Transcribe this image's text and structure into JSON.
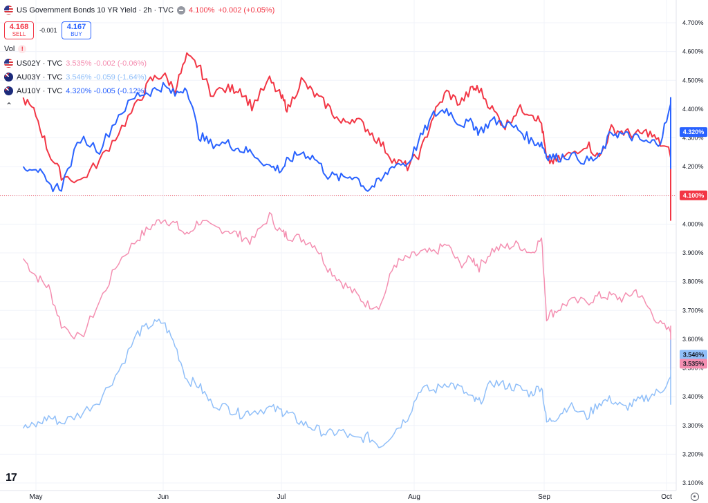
{
  "header": {
    "title": "US Government Bonds 10 YR Yield · 2h · TVC",
    "last": "4.100%",
    "change": "+0.002 (+0.05%)"
  },
  "trade": {
    "sell_price": "4.168",
    "sell_label": "SELL",
    "buy_price": "4.167",
    "buy_label": "BUY",
    "spread": "-0.001"
  },
  "vol_label": "Vol",
  "legend": [
    {
      "symbol": "US02Y · TVC",
      "values": "3.535% -0.002 (-0.06%)",
      "color": "#f48fb1",
      "flag": "us"
    },
    {
      "symbol": "AU03Y · TVC",
      "values": "3.546% -0.059 (-1.64%)",
      "color": "#90bff9",
      "flag": "au"
    },
    {
      "symbol": "AU10Y · TVC",
      "values": "4.320% -0.005 (-0.12%)",
      "color": "#2962ff",
      "flag": "au"
    }
  ],
  "icons": [
    "us-flag-icon",
    "au-flag-icon",
    "minus-icon",
    "warning-icon",
    "chevron-up-icon",
    "tradingview-logo",
    "settings-icon"
  ],
  "chart_data": {
    "type": "line",
    "y_unit": "%",
    "ylim": [
      3.1,
      4.7
    ],
    "y_ticks": [
      "4.700%",
      "4.600%",
      "4.500%",
      "4.400%",
      "4.300%",
      "4.200%",
      "4.100%",
      "4.000%",
      "3.900%",
      "3.800%",
      "3.700%",
      "3.600%",
      "3.500%",
      "3.400%",
      "3.300%",
      "3.200%",
      "3.100%"
    ],
    "x_labels": [
      "May",
      "Jun",
      "Jul",
      "Aug",
      "Sep",
      "Oct"
    ],
    "grid": true,
    "legend_position": "top-left",
    "series": [
      {
        "name": "US10Y",
        "color": "#f23645",
        "last": "4.100%",
        "points": [
          [
            -0.1,
            4.44
          ],
          [
            0.0,
            4.38
          ],
          [
            0.1,
            4.25
          ],
          [
            0.2,
            4.17
          ],
          [
            0.35,
            4.15
          ],
          [
            0.5,
            4.22
          ],
          [
            0.65,
            4.32
          ],
          [
            0.8,
            4.42
          ],
          [
            0.9,
            4.5
          ],
          [
            1.0,
            4.52
          ],
          [
            1.1,
            4.47
          ],
          [
            1.2,
            4.58
          ],
          [
            1.3,
            4.55
          ],
          [
            1.4,
            4.46
          ],
          [
            1.55,
            4.47
          ],
          [
            1.65,
            4.47
          ],
          [
            1.75,
            4.41
          ],
          [
            1.9,
            4.5
          ],
          [
            2.0,
            4.44
          ],
          [
            2.05,
            4.4
          ],
          [
            2.15,
            4.5
          ],
          [
            2.25,
            4.45
          ],
          [
            2.35,
            4.41
          ],
          [
            2.45,
            4.35
          ],
          [
            2.55,
            4.37
          ],
          [
            2.65,
            4.33
          ],
          [
            2.75,
            4.28
          ],
          [
            2.85,
            4.22
          ],
          [
            2.95,
            4.2
          ],
          [
            3.05,
            4.25
          ],
          [
            3.15,
            4.38
          ],
          [
            3.25,
            4.46
          ],
          [
            3.35,
            4.42
          ],
          [
            3.45,
            4.47
          ],
          [
            3.5,
            4.47
          ],
          [
            3.6,
            4.4
          ],
          [
            3.7,
            4.34
          ],
          [
            3.8,
            4.4
          ],
          [
            3.9,
            4.39
          ],
          [
            3.98,
            4.35
          ],
          [
            4.02,
            4.22
          ],
          [
            4.1,
            4.22
          ],
          [
            4.2,
            4.24
          ],
          [
            4.35,
            4.28
          ],
          [
            4.45,
            4.23
          ],
          [
            4.55,
            4.33
          ],
          [
            4.65,
            4.32
          ],
          [
            4.75,
            4.31
          ],
          [
            4.85,
            4.32
          ],
          [
            4.95,
            4.28
          ],
          [
            5.05,
            4.24
          ],
          [
            5.12,
            4.25
          ],
          [
            5.2,
            4.15
          ],
          [
            5.25,
            4.09
          ],
          [
            5.35,
            4.05
          ],
          [
            5.45,
            4.05
          ],
          [
            5.5,
            4.03
          ],
          [
            5.6,
            4.03
          ],
          [
            5.7,
            4.09
          ],
          [
            5.8,
            4.14
          ],
          [
            5.9,
            4.15
          ],
          [
            5.95,
            4.18
          ],
          [
            6.03,
            4.15
          ],
          [
            6.08,
            4.1
          ]
        ]
      },
      {
        "name": "AU10Y",
        "color": "#2962ff",
        "last": "4.320%",
        "points": [
          [
            -0.1,
            4.2
          ],
          [
            0.0,
            4.2
          ],
          [
            0.1,
            4.13
          ],
          [
            0.2,
            4.13
          ],
          [
            0.35,
            4.3
          ],
          [
            0.5,
            4.26
          ],
          [
            0.65,
            4.38
          ],
          [
            0.8,
            4.45
          ],
          [
            0.9,
            4.46
          ],
          [
            1.0,
            4.48
          ],
          [
            1.1,
            4.45
          ],
          [
            1.2,
            4.48
          ],
          [
            1.3,
            4.31
          ],
          [
            1.4,
            4.28
          ],
          [
            1.55,
            4.28
          ],
          [
            1.65,
            4.26
          ],
          [
            1.75,
            4.25
          ],
          [
            1.9,
            4.2
          ],
          [
            2.0,
            4.19
          ],
          [
            2.05,
            4.22
          ],
          [
            2.15,
            4.25
          ],
          [
            2.25,
            4.23
          ],
          [
            2.35,
            4.17
          ],
          [
            2.45,
            4.16
          ],
          [
            2.55,
            4.17
          ],
          [
            2.65,
            4.12
          ],
          [
            2.75,
            4.15
          ],
          [
            2.85,
            4.21
          ],
          [
            2.95,
            4.21
          ],
          [
            3.05,
            4.3
          ],
          [
            3.15,
            4.38
          ],
          [
            3.25,
            4.4
          ],
          [
            3.35,
            4.35
          ],
          [
            3.45,
            4.35
          ],
          [
            3.5,
            4.32
          ],
          [
            3.6,
            4.36
          ],
          [
            3.7,
            4.35
          ],
          [
            3.8,
            4.33
          ],
          [
            3.9,
            4.29
          ],
          [
            3.98,
            4.28
          ],
          [
            4.02,
            4.24
          ],
          [
            4.1,
            4.23
          ],
          [
            4.2,
            4.24
          ],
          [
            4.35,
            4.22
          ],
          [
            4.45,
            4.23
          ],
          [
            4.55,
            4.32
          ],
          [
            4.65,
            4.31
          ],
          [
            4.75,
            4.3
          ],
          [
            4.85,
            4.28
          ],
          [
            4.95,
            4.29
          ],
          [
            5.05,
            4.43
          ],
          [
            5.12,
            4.4
          ],
          [
            5.2,
            4.33
          ],
          [
            5.25,
            4.3
          ],
          [
            5.35,
            4.28
          ],
          [
            5.45,
            4.21
          ],
          [
            5.5,
            4.25
          ],
          [
            5.6,
            4.24
          ],
          [
            5.7,
            4.21
          ],
          [
            5.8,
            4.26
          ],
          [
            5.9,
            4.33
          ],
          [
            5.95,
            4.4
          ],
          [
            6.03,
            4.32
          ],
          [
            6.08,
            4.32
          ]
        ]
      },
      {
        "name": "US02Y",
        "color": "#f48fb1",
        "last": "3.535%",
        "points": [
          [
            -0.1,
            3.88
          ],
          [
            0.0,
            3.82
          ],
          [
            0.1,
            3.78
          ],
          [
            0.2,
            3.65
          ],
          [
            0.35,
            3.6
          ],
          [
            0.5,
            3.73
          ],
          [
            0.65,
            3.87
          ],
          [
            0.8,
            3.95
          ],
          [
            0.9,
            3.99
          ],
          [
            1.0,
            4.02
          ],
          [
            1.1,
            4.0
          ],
          [
            1.2,
            3.96
          ],
          [
            1.3,
            4.01
          ],
          [
            1.4,
            3.99
          ],
          [
            1.55,
            3.98
          ],
          [
            1.65,
            3.96
          ],
          [
            1.75,
            3.94
          ],
          [
            1.9,
            4.03
          ],
          [
            2.0,
            3.97
          ],
          [
            2.05,
            3.96
          ],
          [
            2.15,
            3.95
          ],
          [
            2.25,
            3.93
          ],
          [
            2.35,
            3.85
          ],
          [
            2.45,
            3.8
          ],
          [
            2.55,
            3.76
          ],
          [
            2.65,
            3.72
          ],
          [
            2.75,
            3.72
          ],
          [
            2.85,
            3.86
          ],
          [
            2.95,
            3.88
          ],
          [
            3.05,
            3.9
          ],
          [
            3.15,
            3.9
          ],
          [
            3.25,
            3.93
          ],
          [
            3.35,
            3.86
          ],
          [
            3.45,
            3.88
          ],
          [
            3.5,
            3.85
          ],
          [
            3.6,
            3.91
          ],
          [
            3.7,
            3.92
          ],
          [
            3.8,
            3.93
          ],
          [
            3.9,
            3.9
          ],
          [
            3.98,
            3.95
          ],
          [
            4.02,
            3.68
          ],
          [
            4.1,
            3.7
          ],
          [
            4.2,
            3.73
          ],
          [
            4.35,
            3.73
          ],
          [
            4.45,
            3.75
          ],
          [
            4.55,
            3.75
          ],
          [
            4.65,
            3.74
          ],
          [
            4.75,
            3.77
          ],
          [
            4.85,
            3.71
          ],
          [
            4.95,
            3.65
          ],
          [
            5.05,
            3.62
          ],
          [
            5.12,
            3.58
          ],
          [
            5.2,
            3.51
          ],
          [
            5.25,
            3.52
          ],
          [
            5.35,
            3.54
          ],
          [
            5.45,
            3.56
          ],
          [
            5.5,
            3.57
          ],
          [
            5.6,
            3.56
          ],
          [
            5.7,
            3.55
          ],
          [
            5.8,
            3.56
          ],
          [
            5.9,
            3.59
          ],
          [
            5.95,
            3.63
          ],
          [
            6.03,
            3.6
          ],
          [
            6.08,
            3.535
          ]
        ]
      },
      {
        "name": "AU03Y",
        "color": "#90bff9",
        "last": "3.546%",
        "points": [
          [
            -0.1,
            3.29
          ],
          [
            0.0,
            3.3
          ],
          [
            0.1,
            3.33
          ],
          [
            0.2,
            3.31
          ],
          [
            0.35,
            3.34
          ],
          [
            0.5,
            3.39
          ],
          [
            0.65,
            3.49
          ],
          [
            0.8,
            3.62
          ],
          [
            0.9,
            3.65
          ],
          [
            1.0,
            3.66
          ],
          [
            1.1,
            3.58
          ],
          [
            1.2,
            3.46
          ],
          [
            1.3,
            3.44
          ],
          [
            1.4,
            3.38
          ],
          [
            1.55,
            3.36
          ],
          [
            1.65,
            3.34
          ],
          [
            1.75,
            3.35
          ],
          [
            1.9,
            3.36
          ],
          [
            2.0,
            3.35
          ],
          [
            2.05,
            3.34
          ],
          [
            2.15,
            3.31
          ],
          [
            2.25,
            3.29
          ],
          [
            2.35,
            3.27
          ],
          [
            2.45,
            3.28
          ],
          [
            2.55,
            3.25
          ],
          [
            2.65,
            3.26
          ],
          [
            2.75,
            3.23
          ],
          [
            2.85,
            3.28
          ],
          [
            2.95,
            3.33
          ],
          [
            3.05,
            3.43
          ],
          [
            3.15,
            3.42
          ],
          [
            3.25,
            3.45
          ],
          [
            3.35,
            3.43
          ],
          [
            3.45,
            3.39
          ],
          [
            3.5,
            3.38
          ],
          [
            3.6,
            3.45
          ],
          [
            3.7,
            3.44
          ],
          [
            3.8,
            3.43
          ],
          [
            3.9,
            3.41
          ],
          [
            3.98,
            3.44
          ],
          [
            4.02,
            3.31
          ],
          [
            4.1,
            3.33
          ],
          [
            4.2,
            3.37
          ],
          [
            4.35,
            3.33
          ],
          [
            4.45,
            3.38
          ],
          [
            4.55,
            3.39
          ],
          [
            4.65,
            3.36
          ],
          [
            4.75,
            3.38
          ],
          [
            4.85,
            3.4
          ],
          [
            4.95,
            3.42
          ],
          [
            5.05,
            3.47
          ],
          [
            5.12,
            3.45
          ],
          [
            5.2,
            3.42
          ],
          [
            5.25,
            3.44
          ],
          [
            5.35,
            3.43
          ],
          [
            5.45,
            3.39
          ],
          [
            5.5,
            3.44
          ],
          [
            5.6,
            3.4
          ],
          [
            5.7,
            3.41
          ],
          [
            5.8,
            3.43
          ],
          [
            5.9,
            3.52
          ],
          [
            5.95,
            3.58
          ],
          [
            6.03,
            3.58
          ],
          [
            6.08,
            3.546
          ]
        ]
      }
    ]
  }
}
